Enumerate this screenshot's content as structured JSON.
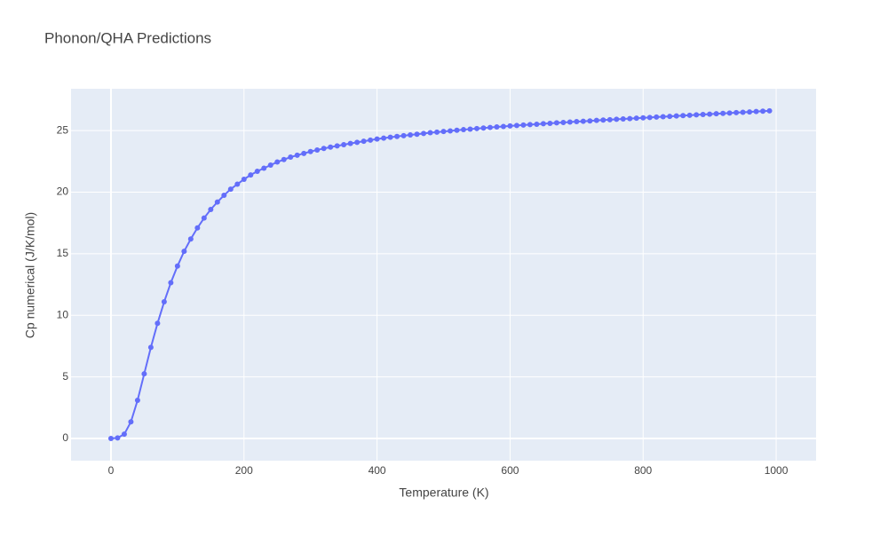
{
  "chart_data": {
    "type": "line",
    "title": "Phonon/QHA Predictions",
    "x_label": "Temperature (K)",
    "y_label": "Cp numerical (J/K/mol)",
    "x": [
      0,
      10,
      20,
      30,
      40,
      50,
      60,
      70,
      80,
      90,
      100,
      110,
      120,
      130,
      140,
      150,
      160,
      170,
      180,
      190,
      200,
      210,
      220,
      230,
      240,
      250,
      260,
      270,
      280,
      290,
      300,
      310,
      320,
      330,
      340,
      350,
      360,
      370,
      380,
      390,
      400,
      410,
      420,
      430,
      440,
      450,
      460,
      470,
      480,
      490,
      500,
      510,
      520,
      530,
      540,
      550,
      560,
      570,
      580,
      590,
      600,
      610,
      620,
      630,
      640,
      650,
      660,
      670,
      680,
      690,
      700,
      710,
      720,
      730,
      740,
      750,
      760,
      770,
      780,
      790,
      800,
      810,
      820,
      830,
      840,
      850,
      860,
      870,
      880,
      890,
      900,
      910,
      920,
      930,
      940,
      950,
      960,
      970,
      980,
      990
    ],
    "series": [
      {
        "name": "Cp numerical",
        "color": "#636efa",
        "values": [
          0,
          0.05,
          0.35,
          1.35,
          3.1,
          5.25,
          7.4,
          9.35,
          11.1,
          12.65,
          14.0,
          15.2,
          16.2,
          17.1,
          17.9,
          18.6,
          19.2,
          19.75,
          20.25,
          20.65,
          21.05,
          21.4,
          21.7,
          21.95,
          22.2,
          22.45,
          22.65,
          22.85,
          23.0,
          23.15,
          23.3,
          23.43,
          23.55,
          23.66,
          23.76,
          23.86,
          23.96,
          24.05,
          24.14,
          24.23,
          24.32,
          24.39,
          24.46,
          24.53,
          24.59,
          24.65,
          24.71,
          24.77,
          24.83,
          24.88,
          24.93,
          24.98,
          25.03,
          25.08,
          25.12,
          25.17,
          25.21,
          25.26,
          25.3,
          25.34,
          25.38,
          25.42,
          25.45,
          25.49,
          25.52,
          25.56,
          25.59,
          25.63,
          25.66,
          25.7,
          25.73,
          25.76,
          25.79,
          25.83,
          25.86,
          25.89,
          25.92,
          25.95,
          25.98,
          26.01,
          26.04,
          26.07,
          26.1,
          26.13,
          26.16,
          26.19,
          26.22,
          26.25,
          26.28,
          26.31,
          26.34,
          26.37,
          26.4,
          26.43,
          26.46,
          26.49,
          26.52,
          26.55,
          26.58,
          26.61
        ]
      }
    ],
    "xlim": [
      -60,
      1060
    ],
    "ylim": [
      -1.8,
      28.4
    ],
    "xticks": [
      0,
      200,
      400,
      600,
      800,
      1000
    ],
    "yticks": [
      0,
      5,
      10,
      15,
      20,
      25
    ],
    "grid": true
  }
}
